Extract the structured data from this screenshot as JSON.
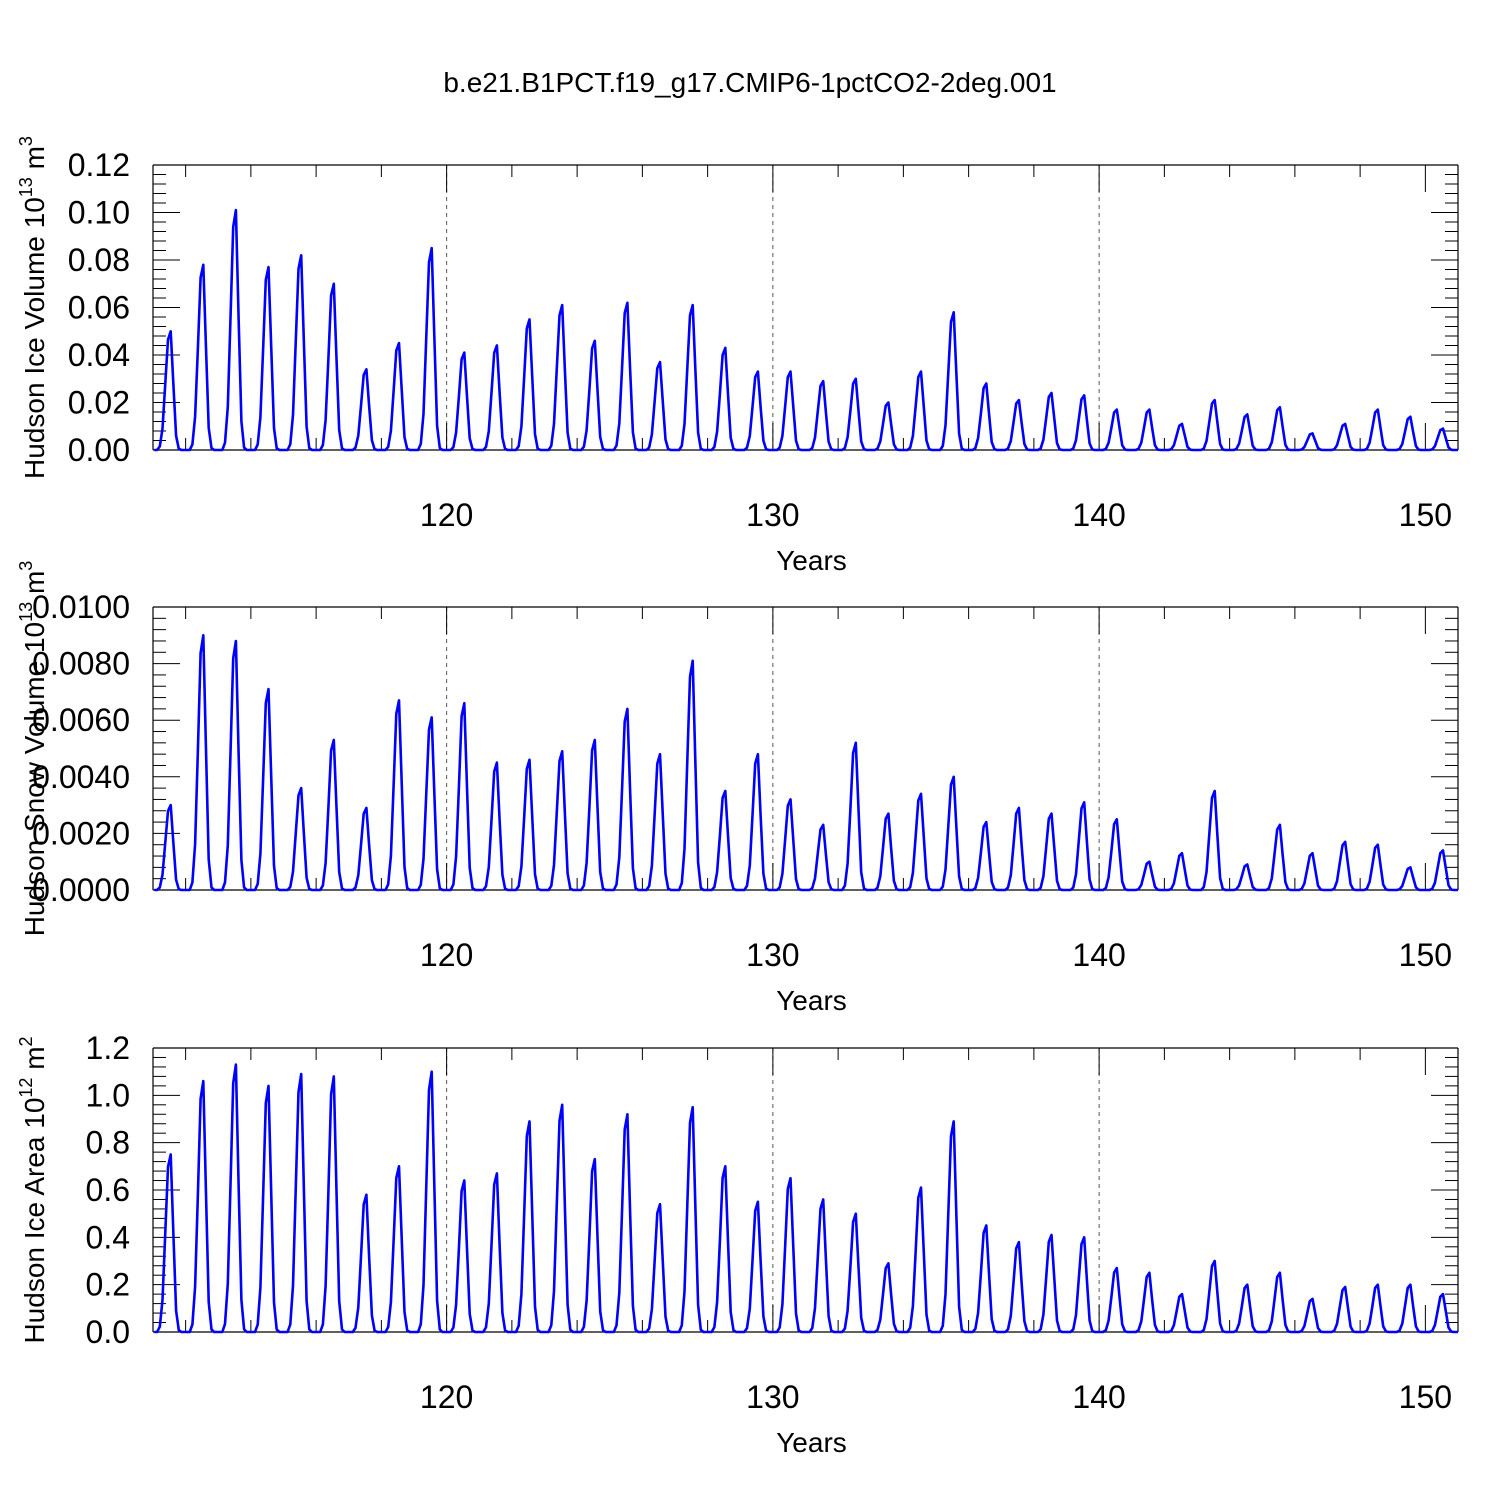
{
  "figure_title": "b.e21.B1PCT.f19_g17.CMIP6-1pctCO2-2deg.001",
  "colors": {
    "line": "#0000ff",
    "axis": "#000000",
    "grid": "#555555"
  },
  "chart_data": [
    {
      "type": "line",
      "ylabel_main": "Hudson Ice Volume 10",
      "ylabel_exp": "13",
      "ylabel_unit": " m",
      "ylabel_unit_exp": "3",
      "xlabel": "Years",
      "xlim": [
        111,
        151
      ],
      "ylim": [
        0,
        0.12
      ],
      "yticks": [
        0.0,
        0.02,
        0.04,
        0.06,
        0.08,
        0.1,
        0.12
      ],
      "ytick_labels": [
        "0.00",
        "0.02",
        "0.04",
        "0.06",
        "0.08",
        "0.10",
        "0.12"
      ],
      "xticks": [
        120,
        130,
        140,
        150
      ],
      "xtick_labels": [
        "120",
        "130",
        "140",
        "150"
      ],
      "grid_x": [
        120,
        130,
        140
      ],
      "series": [
        {
          "peaks": [
            0.05,
            0.078,
            0.101,
            0.077,
            0.082,
            0.07,
            0.034,
            0.045,
            0.085,
            0.041,
            0.044,
            0.055,
            0.061,
            0.046,
            0.062,
            0.037,
            0.061,
            0.043,
            0.033,
            0.033,
            0.029,
            0.03,
            0.02,
            0.033,
            0.058,
            0.028,
            0.021,
            0.024,
            0.023,
            0.017,
            0.017,
            0.011,
            0.021,
            0.015,
            0.018,
            0.007,
            0.011,
            0.017,
            0.014,
            0.009
          ]
        }
      ]
    },
    {
      "type": "line",
      "ylabel_main": "Hudson Snow Volume 10",
      "ylabel_exp": "13",
      "ylabel_unit": " m",
      "ylabel_unit_exp": "3",
      "xlabel": "Years",
      "xlim": [
        111,
        151
      ],
      "ylim": [
        0,
        0.01
      ],
      "yticks": [
        0.0,
        0.002,
        0.004,
        0.006,
        0.008,
        0.01
      ],
      "ytick_labels": [
        "0.0000",
        "0.0020",
        "0.0040",
        "0.0060",
        "0.0080",
        "0.0100"
      ],
      "xticks": [
        120,
        130,
        140,
        150
      ],
      "xtick_labels": [
        "120",
        "130",
        "140",
        "150"
      ],
      "grid_x": [
        120,
        130,
        140
      ],
      "series": [
        {
          "peaks": [
            0.003,
            0.009,
            0.0088,
            0.0071,
            0.0036,
            0.0053,
            0.0029,
            0.0067,
            0.0061,
            0.0066,
            0.0045,
            0.0046,
            0.0049,
            0.0053,
            0.0064,
            0.0048,
            0.0081,
            0.0035,
            0.0048,
            0.0032,
            0.0023,
            0.0052,
            0.0027,
            0.0034,
            0.004,
            0.0024,
            0.0029,
            0.0027,
            0.0031,
            0.0025,
            0.001,
            0.0013,
            0.0035,
            0.0009,
            0.0023,
            0.0013,
            0.0017,
            0.0016,
            0.0008,
            0.0014
          ]
        }
      ]
    },
    {
      "type": "line",
      "ylabel_main": "Hudson Ice Area 10",
      "ylabel_exp": "12",
      "ylabel_unit": " m",
      "ylabel_unit_exp": "2",
      "xlabel": "Years",
      "xlim": [
        111,
        151
      ],
      "ylim": [
        0,
        1.2
      ],
      "yticks": [
        0.0,
        0.2,
        0.4,
        0.6,
        0.8,
        1.0,
        1.2
      ],
      "ytick_labels": [
        "0.0",
        "0.2",
        "0.4",
        "0.6",
        "0.8",
        "1.0",
        "1.2"
      ],
      "xticks": [
        120,
        130,
        140,
        150
      ],
      "xtick_labels": [
        "120",
        "130",
        "140",
        "150"
      ],
      "grid_x": [
        120,
        130,
        140
      ],
      "series": [
        {
          "peaks": [
            0.75,
            1.06,
            1.13,
            1.04,
            1.09,
            1.08,
            0.58,
            0.7,
            1.1,
            0.64,
            0.67,
            0.89,
            0.96,
            0.73,
            0.92,
            0.54,
            0.95,
            0.7,
            0.55,
            0.65,
            0.56,
            0.5,
            0.29,
            0.61,
            0.89,
            0.45,
            0.38,
            0.41,
            0.4,
            0.27,
            0.25,
            0.16,
            0.3,
            0.2,
            0.25,
            0.14,
            0.19,
            0.2,
            0.2,
            0.16
          ]
        }
      ]
    }
  ]
}
